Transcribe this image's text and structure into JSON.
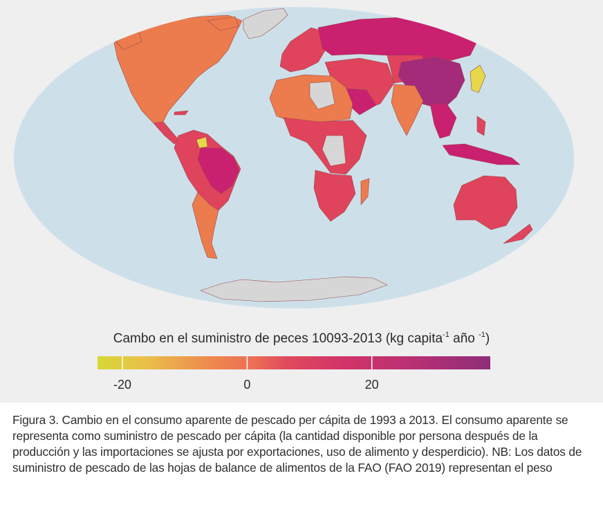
{
  "map": {
    "colors": {
      "ocean": "#cde0ea",
      "no_data": "#d6d6d6",
      "low_yellow": "#e6d84a",
      "orange": "#ec7b4e",
      "red": "#e0435c",
      "magenta": "#c9206f",
      "purple": "#a42a7a"
    }
  },
  "legend": {
    "title": "Cambo en el suministro de peces 10093-2013 (kg capita",
    "sup1": "-1",
    "mid": " año ",
    "sup2": "-1",
    "end": ")",
    "ticks": [
      {
        "value": -20,
        "label": "-20"
      },
      {
        "value": 0,
        "label": "0"
      },
      {
        "value": 20,
        "label": "20"
      }
    ],
    "range": [
      -24,
      39
    ]
  },
  "caption": {
    "text": "Figura 3. Cambio en el consumo aparente de pescado per cápita de 1993 a 2013. El consumo aparente se representa como suministro de pescado per cápita (la cantidad disponible por persona después de la producción y las importaciones se ajusta por exportaciones, uso de alimento y desperdicio). NB: Los datos de suministro de pescado de las hojas de balance de alimentos de la FAO (FAO 2019) representan el peso"
  }
}
